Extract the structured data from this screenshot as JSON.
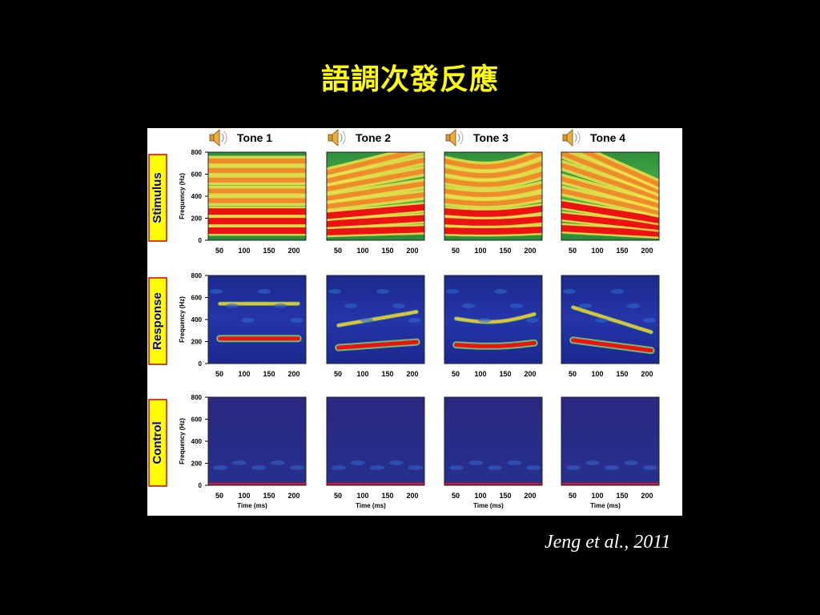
{
  "slide": {
    "title": "語調次發反應",
    "citation": "Jeng et al., 2011"
  },
  "figure": {
    "columns": [
      "Tone 1",
      "Tone 2",
      "Tone 3",
      "Tone 4"
    ],
    "rows": [
      "Stimulus",
      "Response",
      "Control"
    ],
    "y_axis_label": "Frequency (Hz)",
    "y_ticks": [
      "0",
      "200",
      "400",
      "600",
      "800"
    ],
    "x_ticks": [
      "50",
      "100",
      "150",
      "200"
    ],
    "x_axis_label": "Time (ms)",
    "speaker_icon": "speaker-icon",
    "colors": {
      "label_box_fill": "#ffff00",
      "label_box_border": "#cc0000",
      "label_text": "#0000cc",
      "stimulus_bg": "#33aa33",
      "response_bg": "#1a2a9a",
      "control_bg": "#2a2a8a",
      "band_hot": "#ee1111"
    }
  }
}
